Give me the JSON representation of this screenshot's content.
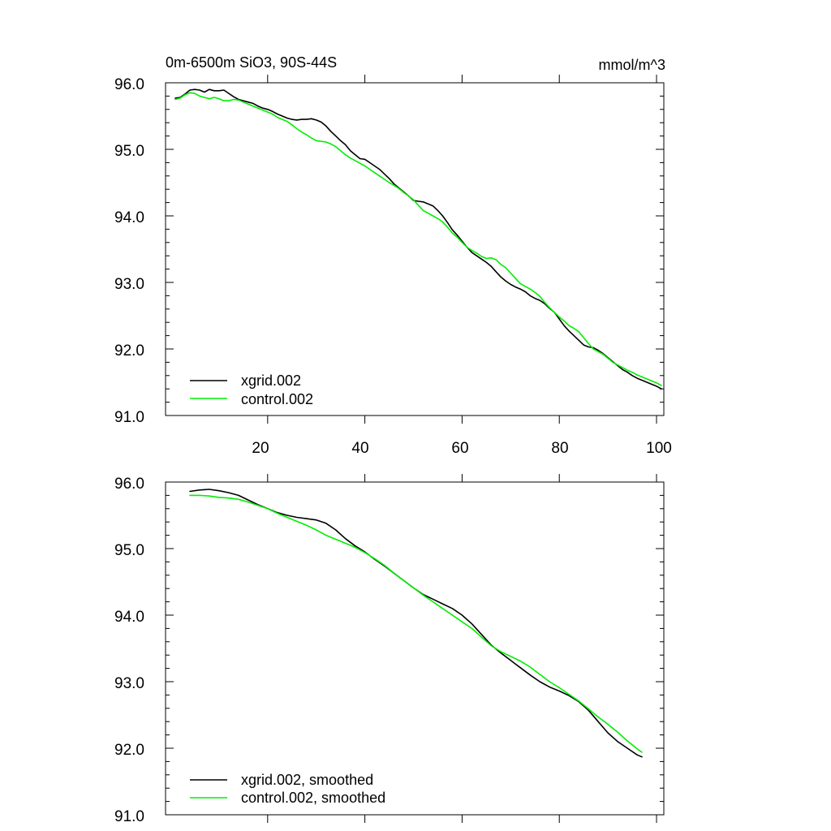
{
  "colors": {
    "xgrid": "#000000",
    "control": "#00ee00"
  },
  "chart_data": [
    {
      "type": "line",
      "title_left": "0m-6500m SiO3, 90S-44S",
      "title_right": "mmol/m^3",
      "xlim": [
        -1,
        101.5
      ],
      "ylim": [
        91.0,
        96.0
      ],
      "xticks": [
        20,
        40,
        60,
        80,
        100
      ],
      "xtick_labels": [
        "20",
        "40",
        "60",
        "80",
        "100"
      ],
      "yticks": [
        91.0,
        92.0,
        93.0,
        94.0,
        95.0,
        96.0
      ],
      "ytick_labels": [
        "91.0",
        "92.0",
        "93.0",
        "94.0",
        "95.0",
        "96.0"
      ],
      "legend_position": "bottom-left",
      "series": [
        {
          "name": "xgrid.002",
          "color_key": "xgrid",
          "x": [
            1,
            2,
            3,
            4,
            5,
            6,
            7,
            8,
            9,
            10,
            11,
            12,
            13,
            14,
            15,
            16,
            17,
            18,
            19,
            20,
            21,
            22,
            23,
            24,
            25,
            26,
            27,
            28,
            29,
            30,
            31,
            32,
            33,
            34,
            35,
            36,
            37,
            38,
            39,
            40,
            41,
            42,
            43,
            44,
            45,
            46,
            47,
            48,
            49,
            50,
            51,
            52,
            53,
            54,
            55,
            56,
            57,
            58,
            59,
            60,
            61,
            62,
            63,
            64,
            65,
            66,
            67,
            68,
            69,
            70,
            71,
            72,
            73,
            74,
            75,
            76,
            77,
            78,
            79,
            80,
            81,
            82,
            83,
            84,
            85,
            86,
            87,
            88,
            89,
            90,
            91,
            92,
            93,
            94,
            95,
            96,
            97,
            98,
            99,
            100,
            101
          ],
          "y": [
            95.77,
            95.78,
            95.83,
            95.89,
            95.9,
            95.89,
            95.86,
            95.9,
            95.88,
            95.88,
            95.89,
            95.84,
            95.79,
            95.75,
            95.73,
            95.71,
            95.69,
            95.65,
            95.62,
            95.6,
            95.57,
            95.53,
            95.5,
            95.47,
            95.45,
            95.44,
            95.45,
            95.45,
            95.46,
            95.44,
            95.41,
            95.35,
            95.27,
            95.2,
            95.13,
            95.07,
            94.98,
            94.92,
            94.86,
            94.85,
            94.8,
            94.75,
            94.7,
            94.63,
            94.56,
            94.48,
            94.42,
            94.36,
            94.3,
            94.23,
            94.22,
            94.21,
            94.18,
            94.15,
            94.08,
            94.0,
            93.9,
            93.79,
            93.71,
            93.62,
            93.53,
            93.45,
            93.4,
            93.35,
            93.3,
            93.24,
            93.16,
            93.08,
            93.02,
            92.97,
            92.93,
            92.9,
            92.86,
            92.8,
            92.76,
            92.73,
            92.68,
            92.61,
            92.55,
            92.45,
            92.35,
            92.27,
            92.2,
            92.13,
            92.06,
            92.03,
            92.02,
            91.98,
            91.93,
            91.87,
            91.81,
            91.75,
            91.69,
            91.65,
            91.6,
            91.56,
            91.53,
            91.5,
            91.47,
            91.44,
            91.4
          ]
        },
        {
          "name": "control.002",
          "color_key": "control",
          "x": [
            1,
            2,
            3,
            4,
            5,
            6,
            7,
            8,
            9,
            10,
            11,
            12,
            13,
            14,
            15,
            16,
            17,
            18,
            19,
            20,
            21,
            22,
            23,
            24,
            25,
            26,
            27,
            28,
            29,
            30,
            31,
            32,
            33,
            34,
            35,
            36,
            37,
            38,
            39,
            40,
            41,
            42,
            43,
            44,
            45,
            46,
            47,
            48,
            49,
            50,
            51,
            52,
            53,
            54,
            55,
            56,
            57,
            58,
            59,
            60,
            61,
            62,
            63,
            64,
            65,
            66,
            67,
            68,
            69,
            70,
            71,
            72,
            73,
            74,
            75,
            76,
            77,
            78,
            79,
            80,
            81,
            82,
            83,
            84,
            85,
            86,
            87,
            88,
            89,
            90,
            91,
            92,
            93,
            94,
            95,
            96,
            97,
            98,
            99,
            100,
            101
          ],
          "y": [
            95.75,
            95.77,
            95.82,
            95.85,
            95.84,
            95.8,
            95.78,
            95.76,
            95.78,
            95.76,
            95.73,
            95.73,
            95.75,
            95.74,
            95.71,
            95.68,
            95.65,
            95.62,
            95.59,
            95.56,
            95.53,
            95.48,
            95.45,
            95.42,
            95.37,
            95.31,
            95.26,
            95.22,
            95.17,
            95.13,
            95.12,
            95.11,
            95.08,
            95.04,
            94.98,
            94.92,
            94.87,
            94.83,
            94.79,
            94.75,
            94.7,
            94.65,
            94.6,
            94.55,
            94.5,
            94.46,
            94.41,
            94.35,
            94.3,
            94.24,
            94.16,
            94.08,
            94.04,
            94.0,
            93.96,
            93.91,
            93.83,
            93.74,
            93.68,
            93.6,
            93.53,
            93.48,
            93.44,
            93.39,
            93.36,
            93.37,
            93.34,
            93.27,
            93.22,
            93.14,
            93.06,
            92.98,
            92.94,
            92.9,
            92.85,
            92.79,
            92.7,
            92.62,
            92.55,
            92.48,
            92.42,
            92.35,
            92.31,
            92.26,
            92.17,
            92.08,
            92.0,
            91.96,
            91.92,
            91.86,
            91.8,
            91.76,
            91.72,
            91.68,
            91.65,
            91.61,
            91.58,
            91.55,
            91.52,
            91.49,
            91.45
          ]
        }
      ]
    },
    {
      "type": "line",
      "xlim": [
        -1,
        101.5
      ],
      "ylim": [
        91.0,
        96.0
      ],
      "xticks": [
        20,
        40,
        60,
        80,
        100
      ],
      "yticks": [
        91.0,
        92.0,
        93.0,
        94.0,
        95.0,
        96.0
      ],
      "ytick_labels": [
        "91.0",
        "92.0",
        "93.0",
        "94.0",
        "95.0",
        "96.0"
      ],
      "legend_position": "bottom-left",
      "series": [
        {
          "name": "xgrid.002, smoothed",
          "color_key": "xgrid",
          "x": [
            4,
            6,
            8,
            10,
            12,
            14,
            16,
            18,
            20,
            22,
            24,
            26,
            28,
            30,
            32,
            34,
            36,
            38,
            40,
            42,
            44,
            46,
            48,
            50,
            52,
            54,
            56,
            58,
            60,
            62,
            64,
            66,
            68,
            70,
            72,
            74,
            76,
            78,
            80,
            82,
            84,
            86,
            88,
            90,
            92,
            94,
            96,
            97
          ],
          "y": [
            95.86,
            95.88,
            95.89,
            95.87,
            95.84,
            95.8,
            95.73,
            95.66,
            95.6,
            95.54,
            95.5,
            95.47,
            95.45,
            95.43,
            95.38,
            95.28,
            95.15,
            95.04,
            94.95,
            94.84,
            94.74,
            94.63,
            94.52,
            94.41,
            94.31,
            94.24,
            94.17,
            94.1,
            94.0,
            93.87,
            93.71,
            93.55,
            93.43,
            93.32,
            93.21,
            93.1,
            93.0,
            92.92,
            92.86,
            92.79,
            92.7,
            92.57,
            92.4,
            92.23,
            92.1,
            92.0,
            91.9,
            91.87
          ]
        },
        {
          "name": "control.002, smoothed",
          "color_key": "control",
          "x": [
            4,
            6,
            8,
            10,
            12,
            14,
            16,
            18,
            20,
            22,
            24,
            26,
            28,
            30,
            32,
            34,
            36,
            38,
            40,
            42,
            44,
            46,
            48,
            50,
            52,
            54,
            56,
            58,
            60,
            62,
            64,
            66,
            68,
            70,
            72,
            74,
            76,
            78,
            80,
            82,
            84,
            86,
            88,
            90,
            92,
            94,
            96,
            97
          ],
          "y": [
            95.8,
            95.8,
            95.79,
            95.77,
            95.76,
            95.74,
            95.7,
            95.65,
            95.6,
            95.53,
            95.47,
            95.41,
            95.35,
            95.28,
            95.2,
            95.14,
            95.08,
            95.02,
            94.94,
            94.85,
            94.75,
            94.63,
            94.52,
            94.41,
            94.3,
            94.2,
            94.1,
            94.0,
            93.9,
            93.8,
            93.67,
            93.54,
            93.45,
            93.38,
            93.31,
            93.22,
            93.11,
            93.0,
            92.91,
            92.81,
            92.71,
            92.59,
            92.47,
            92.36,
            92.24,
            92.11,
            91.99,
            91.94
          ]
        }
      ]
    }
  ]
}
